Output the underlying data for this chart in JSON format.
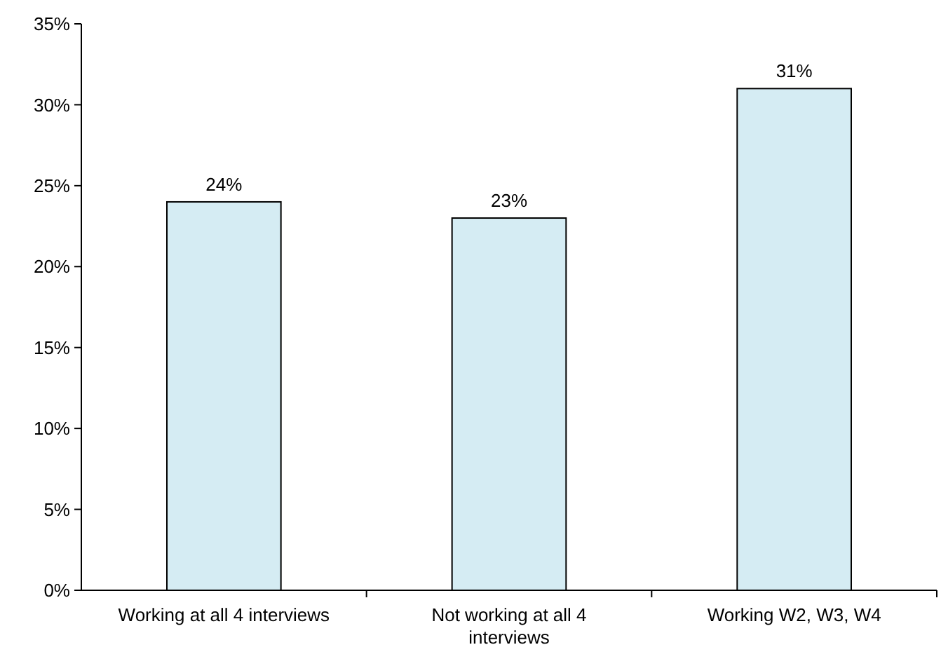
{
  "chart_data": {
    "type": "bar",
    "categories": [
      "Working at all 4 interviews",
      "Not working at all 4 interviews",
      "Working W2, W3, W4"
    ],
    "values": [
      24,
      23,
      31
    ],
    "color": "#d5ecf3",
    "value_labels": [
      "24%",
      "23%",
      "31%"
    ],
    "ylim": [
      0,
      35
    ],
    "yticks": [
      {
        "value": 0,
        "label": "0%"
      },
      {
        "value": 5,
        "label": "5%"
      },
      {
        "value": 10,
        "label": "10%"
      },
      {
        "value": 15,
        "label": "15%"
      },
      {
        "value": 20,
        "label": "20%"
      },
      {
        "value": 25,
        "label": "25%"
      },
      {
        "value": 30,
        "label": "30%"
      },
      {
        "value": 35,
        "label": "35%"
      }
    ],
    "grid": false
  }
}
